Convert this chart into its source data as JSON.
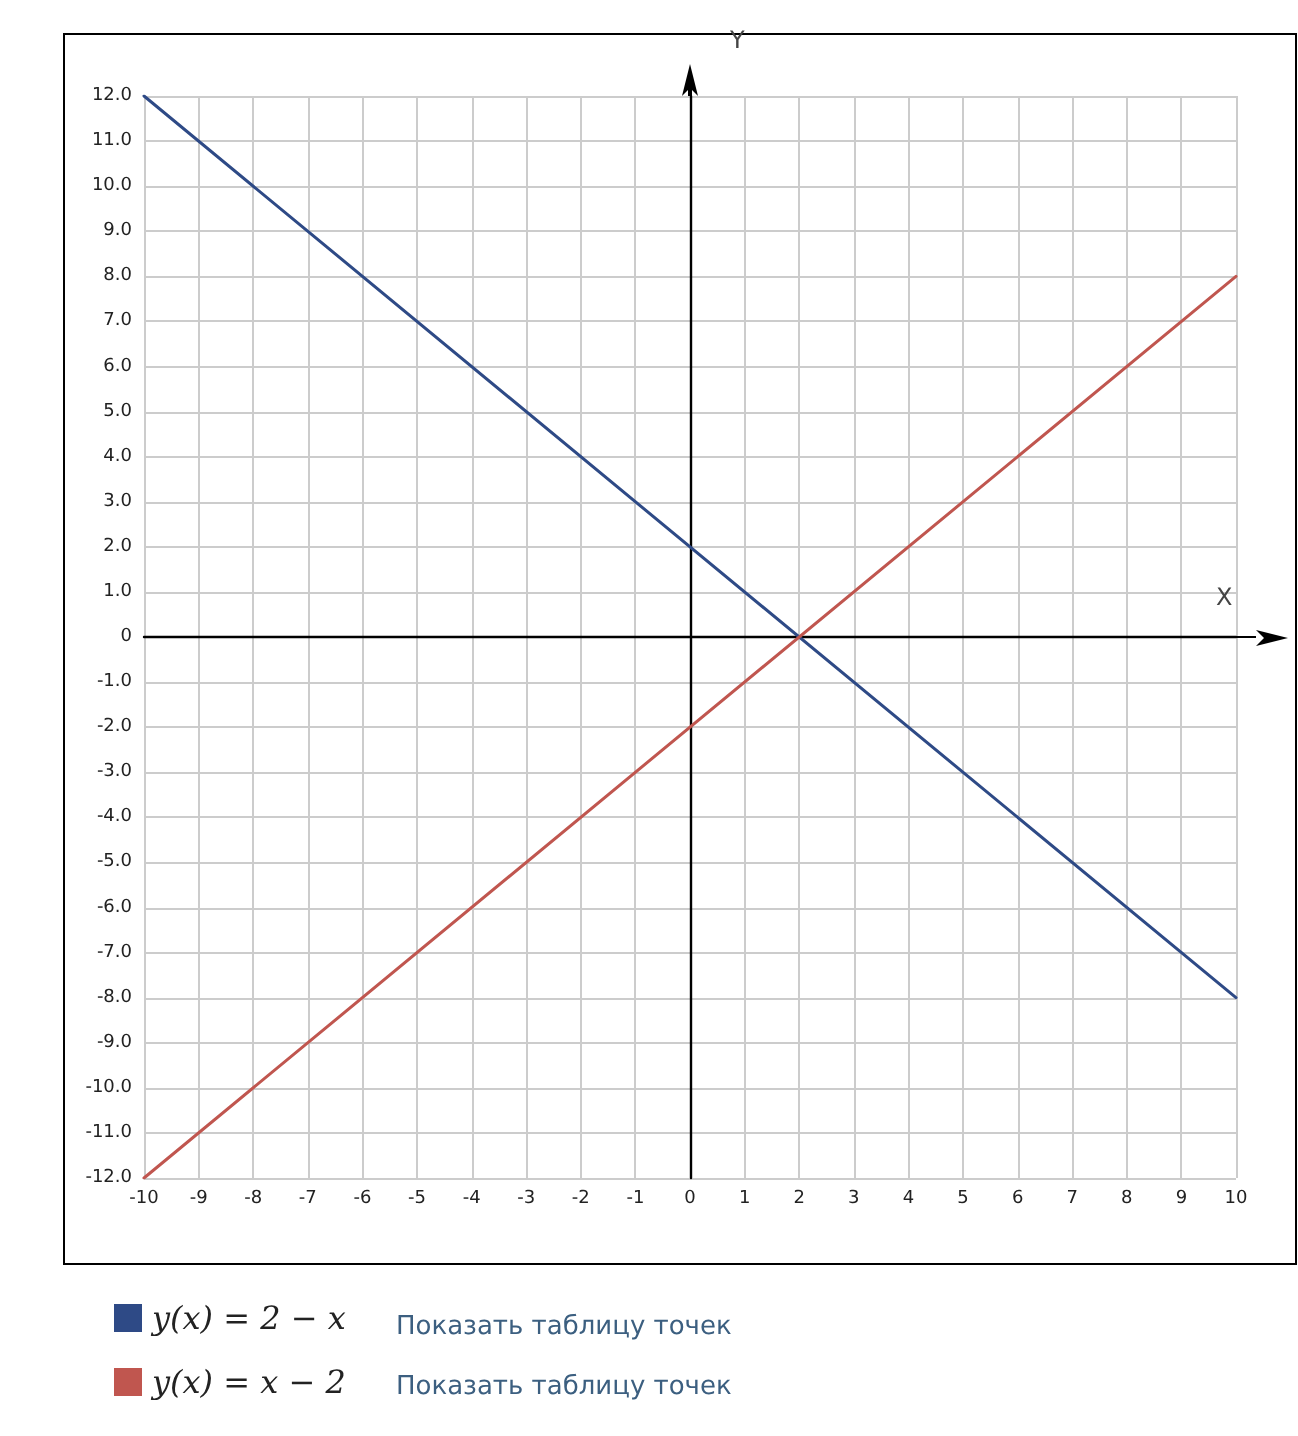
{
  "chart_data": {
    "type": "line",
    "xlabel": "X",
    "ylabel": "Y",
    "x": [
      -10,
      10
    ],
    "series": [
      {
        "name": "y(x) = 2 − x",
        "color": "#2e4a86",
        "values": [
          12,
          -8
        ]
      },
      {
        "name": "y(x) = x − 2",
        "color": "#c0564f",
        "values": [
          -12,
          8
        ]
      }
    ],
    "xlim": [
      -10,
      10
    ],
    "xticks": [
      -10,
      -9,
      -8,
      -7,
      -6,
      -5,
      -4,
      -3,
      -2,
      -1,
      0,
      1,
      2,
      3,
      4,
      5,
      6,
      7,
      8,
      9,
      10
    ],
    "ylim": [
      -12,
      12
    ],
    "yticks": [
      {
        "value": -12,
        "label": "-12.0"
      },
      {
        "value": -11,
        "label": "-11.0"
      },
      {
        "value": -10,
        "label": "-10.0"
      },
      {
        "value": -9,
        "label": "-9.0"
      },
      {
        "value": -8,
        "label": "-8.0"
      },
      {
        "value": -7,
        "label": "-7.0"
      },
      {
        "value": -6,
        "label": "-6.0"
      },
      {
        "value": -5,
        "label": "-5.0"
      },
      {
        "value": -4,
        "label": "-4.0"
      },
      {
        "value": -3,
        "label": "-3.0"
      },
      {
        "value": -2,
        "label": "-2.0"
      },
      {
        "value": -1,
        "label": "-1.0"
      },
      0,
      {
        "value": 1,
        "label": "1.0"
      },
      {
        "value": 2,
        "label": "2.0"
      },
      {
        "value": 3,
        "label": "3.0"
      },
      {
        "value": 4,
        "label": "4.0"
      },
      {
        "value": 5,
        "label": "5.0"
      },
      {
        "value": 6,
        "label": "6.0"
      },
      {
        "value": 7,
        "label": "7.0"
      },
      {
        "value": 8,
        "label": "8.0"
      },
      {
        "value": 9,
        "label": "9.0"
      },
      {
        "value": 10,
        "label": "10.0"
      },
      {
        "value": 11,
        "label": "11.0"
      },
      {
        "value": 12,
        "label": "12.0"
      }
    ],
    "grid": true,
    "legend": "bottom",
    "marker": "none",
    "line_style": "solid",
    "annotations": [
      "Показать таблицу точек",
      "Показать таблицу точек"
    ]
  }
}
